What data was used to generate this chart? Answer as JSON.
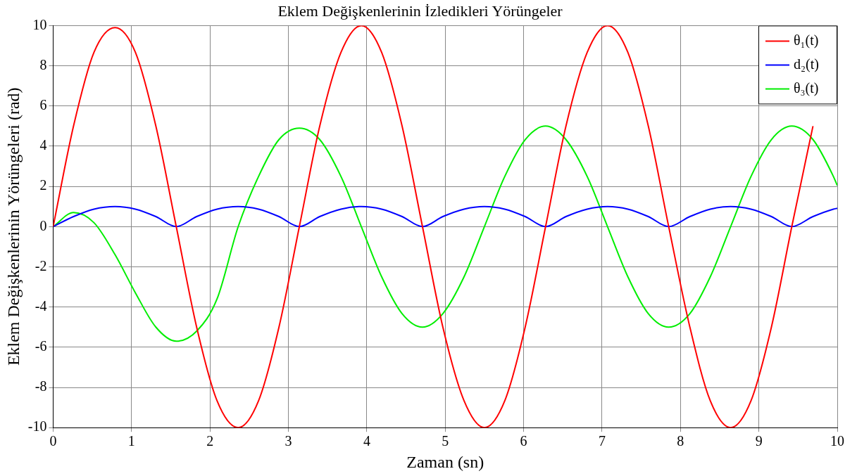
{
  "chart_data": {
    "type": "line",
    "title": "Eklem Değişkenlerinin İzledikleri Yörüngeler",
    "xlabel": "Zaman (sn)",
    "ylabel": "Eklem Değişkenlerinin Yörüngeleri (rad)",
    "x": [
      0,
      0.26,
      0.52,
      0.79,
      1.05,
      1.31,
      1.57,
      1.83,
      2.09,
      2.36,
      2.62,
      2.88,
      3.14,
      3.4,
      3.67,
      3.93,
      4.19,
      4.45,
      4.71,
      4.97,
      5.24,
      5.5,
      5.76,
      6.02,
      6.28,
      6.54,
      6.81,
      7.07,
      7.33,
      7.59,
      7.85,
      8.12,
      8.38,
      8.64,
      8.9,
      9.16,
      9.42,
      9.69,
      9.95,
      10
    ],
    "series": [
      {
        "name": "θ₁(t)",
        "color": "#ff0000",
        "values": [
          0,
          5,
          8.66,
          9.9,
          8.66,
          5,
          0,
          -5,
          -8.66,
          -10,
          -8.66,
          -5,
          0,
          5,
          8.66,
          10,
          8.66,
          5,
          0,
          -5,
          -8.66,
          -10,
          -8.66,
          -5,
          0,
          5,
          8.66,
          10,
          8.66,
          5,
          0,
          -5,
          -8.66,
          -10,
          -8.66,
          -5,
          0,
          5,
          null,
          null
        ]
      },
      {
        "name": "d₂(t)",
        "color": "#0000ff",
        "values": [
          0,
          0.5,
          0.87,
          1,
          0.87,
          0.5,
          0,
          0.5,
          0.87,
          1,
          0.87,
          0.5,
          0,
          0.5,
          0.87,
          1,
          0.87,
          0.5,
          0,
          0.5,
          0.87,
          1,
          0.87,
          0.5,
          0,
          0.5,
          0.87,
          1,
          0.87,
          0.5,
          0,
          0.5,
          0.87,
          1,
          0.87,
          0.5,
          0,
          0.5,
          0.87,
          0.91
        ]
      },
      {
        "name": "θ₃(t)",
        "color": "#00ee00",
        "values": [
          0,
          0.7,
          0.2,
          -1.4,
          -3.3,
          -5,
          -5.7,
          -5.2,
          -3.6,
          0,
          2.5,
          4.33,
          4.9,
          4.33,
          2.5,
          0,
          -2.5,
          -4.33,
          -5,
          -4.33,
          -2.5,
          0,
          2.5,
          4.33,
          5,
          4.33,
          2.5,
          0,
          -2.5,
          -4.33,
          -5,
          -4.33,
          -2.5,
          0,
          2.5,
          4.33,
          5,
          4.33,
          2.5,
          2.04
        ]
      }
    ],
    "xlim": [
      0,
      10
    ],
    "xticks": [
      0,
      1,
      2,
      3,
      4,
      5,
      6,
      7,
      8,
      9,
      10
    ],
    "ylim": [
      -10,
      10
    ],
    "yticks": [
      -10,
      -8,
      -6,
      -4,
      -2,
      0,
      2,
      4,
      6,
      8,
      10
    ],
    "grid": true,
    "legend": "top right",
    "marker": "none",
    "line_style": "solid"
  }
}
